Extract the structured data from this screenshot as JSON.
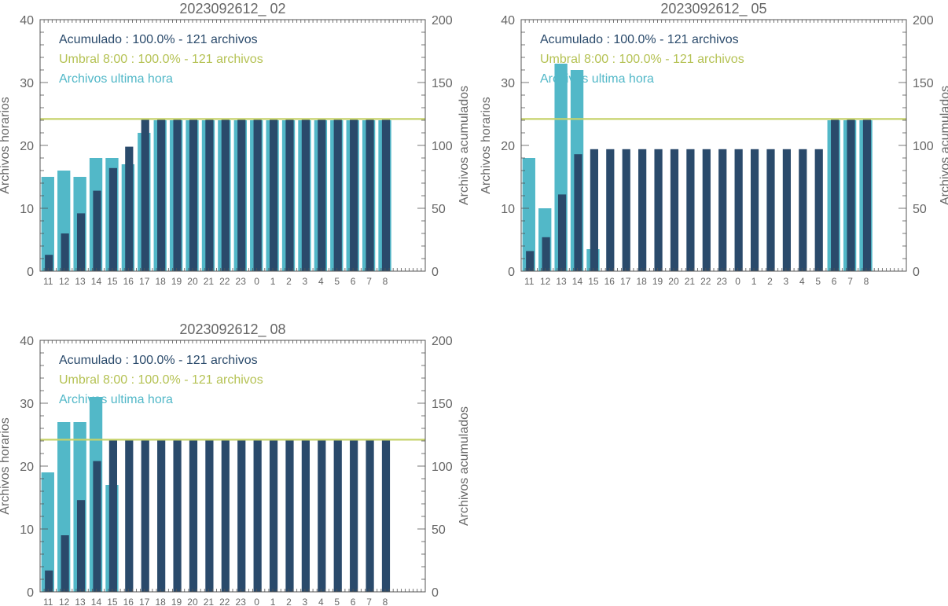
{
  "chart_data": [
    {
      "type": "bar",
      "title": "2023092612_ 02",
      "ylabel_left": "Archivos horarios",
      "ylabel_right": "Archivos acumulados",
      "ylim_left": [
        0,
        40
      ],
      "ylim_right": [
        0,
        200
      ],
      "yticks_left": [
        0,
        10,
        20,
        30,
        40
      ],
      "yticks_right": [
        0,
        50,
        100,
        150,
        200
      ],
      "grid": false,
      "legend_position": "top-left",
      "categories": [
        "11",
        "12",
        "13",
        "14",
        "15",
        "16",
        "17",
        "18",
        "19",
        "20",
        "21",
        "22",
        "23",
        "0",
        "1",
        "2",
        "3",
        "4",
        "5",
        "6",
        "7",
        "8"
      ],
      "series": [
        {
          "name": "Archivos ultima hora",
          "axis": "left",
          "color": "#52b8c8",
          "values": [
            15,
            16,
            15,
            18,
            18,
            17,
            22,
            24,
            24,
            24,
            24,
            24,
            24,
            24,
            24,
            24,
            24,
            24,
            24,
            24,
            24,
            24
          ]
        },
        {
          "name": "Acumulado",
          "axis": "right",
          "color": "#2a4a6b",
          "values": [
            13,
            30,
            46,
            64,
            82,
            99,
            121,
            121,
            121,
            121,
            121,
            121,
            121,
            121,
            121,
            121,
            121,
            121,
            121,
            121,
            121,
            121
          ]
        }
      ],
      "threshold": {
        "value": 121,
        "axis": "right",
        "color": "#c6d26a"
      },
      "legend": [
        {
          "text": "Acumulado : 100.0% - 121 archivos",
          "color": "#2a4a6b"
        },
        {
          "text": "Umbral 8:00 : 100.0% - 121 archivos",
          "color": "#b5c254"
        },
        {
          "text": "Archivos ultima hora",
          "color": "#52b8c8"
        }
      ]
    },
    {
      "type": "bar",
      "title": "2023092612_ 05",
      "ylabel_left": "Archivos horarios",
      "ylabel_right": "Archivos acumulados",
      "ylim_left": [
        0,
        40
      ],
      "ylim_right": [
        0,
        200
      ],
      "yticks_left": [
        0,
        10,
        20,
        30,
        40
      ],
      "yticks_right": [
        0,
        50,
        100,
        150,
        200
      ],
      "grid": false,
      "legend_position": "top-left",
      "categories": [
        "11",
        "12",
        "13",
        "14",
        "15",
        "16",
        "17",
        "18",
        "19",
        "20",
        "21",
        "22",
        "23",
        "0",
        "1",
        "2",
        "3",
        "4",
        "5",
        "6",
        "7",
        "8"
      ],
      "series": [
        {
          "name": "Archivos ultima hora",
          "axis": "left",
          "color": "#52b8c8",
          "values": [
            18,
            10,
            33,
            32,
            3.5,
            0,
            0,
            0,
            0,
            0,
            0,
            0,
            0,
            0,
            0,
            0,
            0,
            0,
            0,
            24,
            24,
            24
          ]
        },
        {
          "name": "Acumulado",
          "axis": "right",
          "color": "#2a4a6b",
          "values": [
            16,
            27,
            61,
            93,
            97,
            97,
            97,
            97,
            97,
            97,
            97,
            97,
            97,
            97,
            97,
            97,
            97,
            97,
            97,
            121,
            121,
            121
          ]
        }
      ],
      "threshold": {
        "value": 121,
        "axis": "right",
        "color": "#c6d26a"
      },
      "legend": [
        {
          "text": "Acumulado : 100.0% - 121 archivos",
          "color": "#2a4a6b"
        },
        {
          "text": "Umbral 8:00 : 100.0% - 121 archivos",
          "color": "#b5c254"
        },
        {
          "text": "Archivos ultima hora",
          "color": "#52b8c8"
        }
      ]
    },
    {
      "type": "bar",
      "title": "2023092612_ 08",
      "ylabel_left": "Archivos horarios",
      "ylabel_right": "Archivos acumulados",
      "ylim_left": [
        0,
        40
      ],
      "ylim_right": [
        0,
        200
      ],
      "yticks_left": [
        0,
        10,
        20,
        30,
        40
      ],
      "yticks_right": [
        0,
        50,
        100,
        150,
        200
      ],
      "grid": false,
      "legend_position": "top-left",
      "categories": [
        "11",
        "12",
        "13",
        "14",
        "15",
        "16",
        "17",
        "18",
        "19",
        "20",
        "21",
        "22",
        "23",
        "0",
        "1",
        "2",
        "3",
        "4",
        "5",
        "6",
        "7",
        "8"
      ],
      "series": [
        {
          "name": "Archivos ultima hora",
          "axis": "left",
          "color": "#52b8c8",
          "values": [
            19,
            27,
            27,
            31,
            17,
            0,
            0,
            0,
            0,
            0,
            0,
            0,
            0,
            0,
            0,
            0,
            0,
            0,
            0,
            0,
            0,
            0
          ]
        },
        {
          "name": "Acumulado",
          "axis": "right",
          "color": "#2a4a6b",
          "values": [
            17,
            45,
            73,
            104,
            121,
            121,
            121,
            121,
            121,
            121,
            121,
            121,
            121,
            121,
            121,
            121,
            121,
            121,
            121,
            121,
            121,
            121
          ]
        }
      ],
      "threshold": {
        "value": 121,
        "axis": "right",
        "color": "#c6d26a"
      },
      "legend": [
        {
          "text": "Acumulado : 100.0% - 121 archivos",
          "color": "#2a4a6b"
        },
        {
          "text": "Umbral 8:00 : 100.0% - 121 archivos",
          "color": "#b5c254"
        },
        {
          "text": "Archivos ultima hora",
          "color": "#52b8c8"
        }
      ]
    }
  ]
}
